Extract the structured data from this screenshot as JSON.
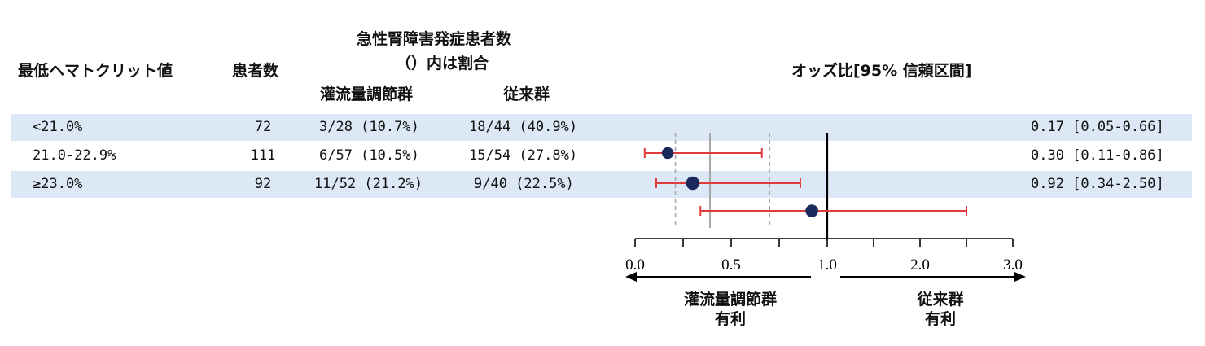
{
  "headers": {
    "hematocrit": "最低ヘマトクリット値",
    "patients": "患者数",
    "aki_line1": "急性腎障害発症患者数",
    "aki_line2": "（）内は割合",
    "perfusion": "灌流量調節群",
    "conventional": "従来群",
    "or_ci": "オッズ比[95% 信頼区間]"
  },
  "rows": [
    {
      "group": "<21.0%",
      "n": "72",
      "perfusion": "3/28 (10.7%)",
      "conventional": "18/44 (40.9%)",
      "or_text": "0.17 [0.05-0.66]"
    },
    {
      "group": "21.0-22.9%",
      "n": "111",
      "perfusion": "6/57 (10.5%)",
      "conventional": "15/54 (27.8%)",
      "or_text": "0.30 [0.11-0.86]"
    },
    {
      "group": "≥23.0%",
      "n": "92",
      "perfusion": "11/52 (21.2%)",
      "conventional": "9/40 (22.5%)",
      "or_text": "0.92 [0.34-2.50]"
    }
  ],
  "favor": {
    "left_line1": "灌流量調節群",
    "left_line2": "有利",
    "right_line1": "従来群",
    "right_line2": "有利"
  },
  "chart_data": {
    "type": "scatter",
    "subtype": "forest",
    "categories": [
      "<21.0%",
      "21.0-22.9%",
      "≥23.0%"
    ],
    "series": [
      {
        "values": [
          0.17,
          0.3,
          0.92
        ],
        "ci_lower": [
          0.05,
          0.11,
          0.34
        ],
        "ci_upper": [
          0.66,
          0.86,
          2.5
        ],
        "weights": [
          72,
          111,
          92
        ]
      }
    ],
    "xticks": [
      "0.0",
      "0.5",
      "1.0",
      "2.0",
      "3.0"
    ],
    "xlim": [
      0.0,
      3.0
    ],
    "reference_line": 1.0,
    "point_color": "#1a2a5c",
    "ci_color": "#e03c3c",
    "reference_lines_color": "#a8a8a8"
  }
}
